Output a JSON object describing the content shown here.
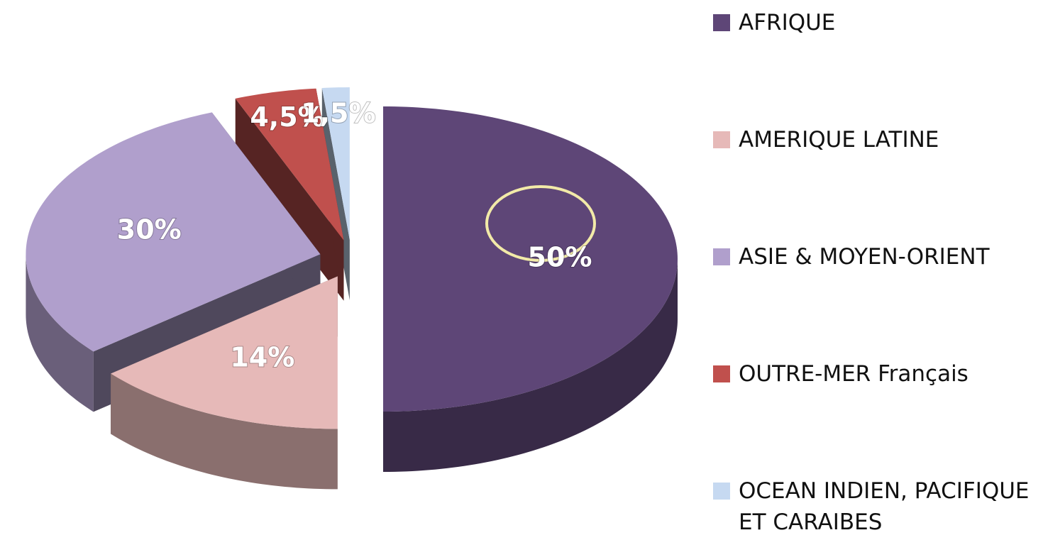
{
  "chart_data": {
    "type": "pie",
    "categories": [
      "AFRIQUE",
      "AMERIQUE LATINE",
      "ASIE & MOYEN-ORIENT",
      "OUTRE-MER Français",
      "OCEAN INDIEN, PACIFIQUE ET CARAIBES"
    ],
    "values": [
      50,
      14,
      30,
      4.5,
      1.5
    ],
    "value_labels": [
      "50%",
      "14%",
      "30%",
      "4,5%",
      "1,5%"
    ],
    "colors": [
      "#5e4677",
      "#e6b9b8",
      "#b09fcc",
      "#c0504d",
      "#c6d9f1"
    ],
    "legend": "right"
  }
}
